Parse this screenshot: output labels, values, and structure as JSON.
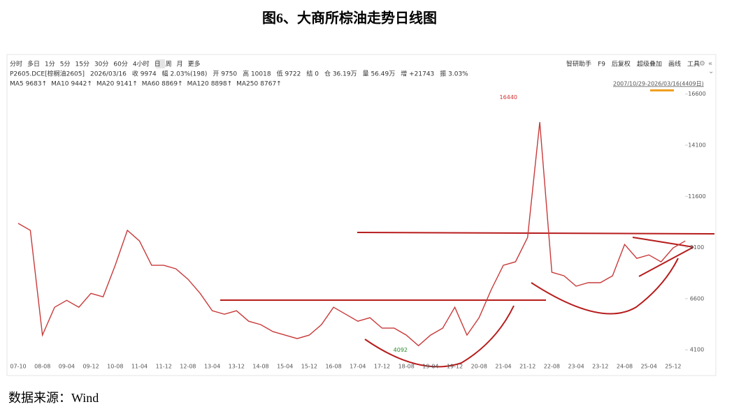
{
  "figure_title": "图6、大商所棕油走势日线图",
  "source": "数据来源：Wind",
  "toolbar": [
    "分时",
    "多日",
    "1分",
    "5分",
    "15分",
    "30分",
    "60分",
    "4小时",
    "日",
    "周",
    "月",
    "更多"
  ],
  "tools": [
    "智研助手",
    "F9",
    "后复权",
    "超级叠加",
    "画线",
    "工具"
  ],
  "quote": [
    "P2605.DCE[棕榈油2605]",
    "2026/03/16",
    "收 9974",
    "幅 2.03%(198)",
    "开 9750",
    "高 10018",
    "低 9722",
    "结 0",
    "仓 36.19万",
    "量 56.49万",
    "增 +21743",
    "振 3.03%"
  ],
  "ma": [
    {
      "label": "MA5",
      "value": "9683↑",
      "color": "#e0453a"
    },
    {
      "label": "MA10",
      "value": "9442↑",
      "color": "#3b6fd1"
    },
    {
      "label": "MA20",
      "value": "9141↑",
      "color": "#5b4fc9"
    },
    {
      "label": "MA60",
      "value": "8869↑",
      "color": "#3aa04a"
    },
    {
      "label": "MA120",
      "value": "8898↑",
      "color": "#2aa7a0"
    },
    {
      "label": "MA250",
      "value": "8767↑",
      "color": "#c94fc9"
    }
  ],
  "date_range": "2007/10/29-2026/03/16(4409日)",
  "chart_data": {
    "type": "line",
    "color": "#c83a3a",
    "categories": [
      "07-10",
      null,
      "08-08",
      null,
      "09-04",
      null,
      "09-12",
      null,
      "10-08",
      null,
      "11-04",
      null,
      "11-12",
      null,
      "12-08",
      null,
      "13-04",
      null,
      "13-12",
      null,
      "14-08",
      null,
      "15-04",
      null,
      "15-12",
      null,
      "16-08",
      null,
      "17-04",
      null,
      "17-12",
      null,
      "18-08",
      null,
      "19-04",
      null,
      "19-12",
      null,
      "20-08",
      null,
      "21-04",
      null,
      "21-12",
      null,
      "22-08",
      null,
      "23-04",
      null,
      "23-12",
      null,
      "24-08",
      null,
      "25-04",
      null,
      "25-12",
      null
    ],
    "values": [
      10280,
      9940,
      4820,
      6180,
      6520,
      6180,
      6860,
      6690,
      8230,
      9940,
      9420,
      8230,
      8230,
      8060,
      7550,
      6860,
      6010,
      5840,
      6010,
      5500,
      5330,
      4990,
      4820,
      4650,
      4820,
      5330,
      6180,
      5840,
      5500,
      5670,
      5160,
      5160,
      4820,
      4300,
      4820,
      5160,
      6180,
      4820,
      5670,
      7040,
      8230,
      8400,
      9590,
      15230,
      7890,
      7720,
      7210,
      7380,
      7380,
      7720,
      9250,
      8570,
      8740,
      8400,
      9080,
      9420
    ],
    "ylim": [
      3800,
      17000
    ],
    "yticks": [
      4100,
      6600,
      9100,
      11600,
      14100,
      16600
    ],
    "grid": false,
    "annotations": [
      {
        "value": 16440
      },
      {
        "value": 4092
      }
    ]
  }
}
